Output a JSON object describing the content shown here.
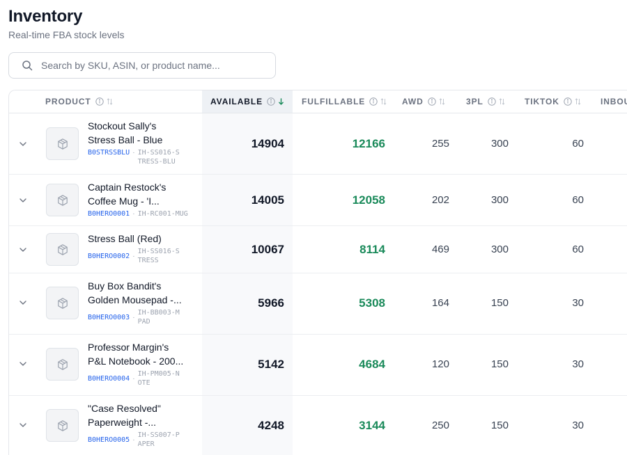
{
  "header": {
    "title": "Inventory",
    "subtitle": "Real-time FBA stock levels"
  },
  "search": {
    "placeholder": "Search by SKU, ASIN, or product name...",
    "value": ""
  },
  "table": {
    "columns": {
      "product": "PRODUCT",
      "available": "AVAILABLE",
      "fulfillable": "FULFILLABLE",
      "awd": "AWD",
      "threepl": "3PL",
      "tiktok": "TIKTOK",
      "inbound": "INBOU"
    },
    "rows": [
      {
        "name_lines": [
          "Stockout Sally's",
          "Stress Ball - Blue"
        ],
        "asin": "B0STRSSBLU",
        "sku": "IH-SS016-STRESS-BLU",
        "available": "14904",
        "fulfillable": "12166",
        "awd": "255",
        "threepl": "300",
        "tiktok": "60"
      },
      {
        "name_lines": [
          "Captain Restock's",
          "Coffee Mug - 'I..."
        ],
        "asin": "B0HERO0001",
        "sku": "IH-RC001-MUG",
        "available": "14005",
        "fulfillable": "12058",
        "awd": "202",
        "threepl": "300",
        "tiktok": "60"
      },
      {
        "name_lines": [
          "Stress Ball (Red)"
        ],
        "asin": "B0HERO0002",
        "sku": "IH-SS016-STRESS",
        "available": "10067",
        "fulfillable": "8114",
        "awd": "469",
        "threepl": "300",
        "tiktok": "60"
      },
      {
        "name_lines": [
          "Buy Box Bandit's",
          "Golden Mousepad -..."
        ],
        "asin": "B0HERO0003",
        "sku": "IH-BB003-MPAD",
        "available": "5966",
        "fulfillable": "5308",
        "awd": "164",
        "threepl": "150",
        "tiktok": "30"
      },
      {
        "name_lines": [
          "Professor Margin's",
          "P&L Notebook - 200..."
        ],
        "asin": "B0HERO0004",
        "sku": "IH-PM005-NOTE",
        "available": "5142",
        "fulfillable": "4684",
        "awd": "120",
        "threepl": "150",
        "tiktok": "30"
      },
      {
        "name_lines": [
          "\"Case Resolved\"",
          "Paperweight -..."
        ],
        "asin": "B0HERO0005",
        "sku": "IH-SS007-PAPER",
        "available": "4248",
        "fulfillable": "3144",
        "awd": "250",
        "threepl": "150",
        "tiktok": "30"
      }
    ]
  },
  "colors": {
    "fulfillable": "#1a8a5a",
    "asin_link": "#2563eb",
    "available_column_bg": "#f8f9fb"
  },
  "icons": {
    "search": "search-icon",
    "info": "info-icon",
    "sort": "sort-icon",
    "sort_active": "arrow-down-icon",
    "expand": "chevron-down-icon",
    "thumbnail": "package-icon"
  }
}
